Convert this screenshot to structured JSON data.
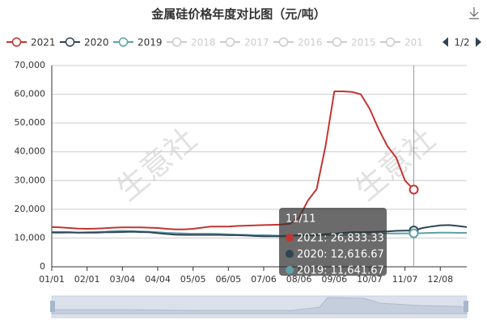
{
  "chart_data": {
    "type": "line",
    "title": "金属硅价格年度对比图（元/吨）",
    "categories": [
      "01/01",
      null,
      null,
      null,
      "02/01",
      null,
      null,
      null,
      "03/04",
      null,
      null,
      null,
      "04/04",
      null,
      null,
      null,
      "05/05",
      null,
      null,
      null,
      "06/05",
      null,
      null,
      null,
      "07/06",
      null,
      null,
      null,
      "08/06",
      null,
      null,
      null,
      "09/06",
      null,
      null,
      null,
      "10/07",
      null,
      null,
      null,
      "11/07",
      null,
      null,
      null,
      "12/08",
      null,
      null,
      null
    ],
    "series": [
      {
        "name": "2021",
        "color": "#c23531",
        "values": [
          13800,
          13700,
          13500,
          13300,
          13200,
          13300,
          13400,
          13600,
          13700,
          13700,
          13700,
          13600,
          13500,
          13200,
          13000,
          13000,
          13200,
          13600,
          14000,
          14000,
          14000,
          14200,
          14300,
          14400,
          14500,
          14600,
          14700,
          15000,
          17000,
          23000,
          27000,
          42000,
          61000,
          61000,
          60800,
          60000,
          55000,
          48000,
          42000,
          38000,
          30000,
          26833.33,
          null,
          null,
          null,
          null,
          null,
          null
        ]
      },
      {
        "name": "2020",
        "color": "#2f4554",
        "values": [
          12000,
          12000,
          12000,
          11900,
          11900,
          11900,
          12000,
          12000,
          12100,
          12200,
          12100,
          12000,
          11700,
          11400,
          11200,
          11100,
          11100,
          11100,
          11100,
          11100,
          11000,
          11000,
          10900,
          10700,
          10600,
          10600,
          10600,
          10700,
          11000,
          11000,
          11100,
          11300,
          11500,
          11800,
          12000,
          12000,
          12100,
          12200,
          12300,
          12500,
          12600,
          12616.67,
          13500,
          14000,
          14400,
          14500,
          14200,
          13800
        ]
      },
      {
        "name": "2019",
        "color": "#61a0a8",
        "values": [
          11800,
          11800,
          11900,
          11900,
          12000,
          12100,
          12200,
          12400,
          12500,
          12400,
          12300,
          12200,
          12000,
          11800,
          11700,
          11600,
          11500,
          11500,
          11500,
          11400,
          11300,
          11200,
          11100,
          11000,
          11000,
          10900,
          10800,
          10800,
          10800,
          10800,
          10900,
          10900,
          11000,
          11100,
          11200,
          11300,
          11400,
          11500,
          11600,
          11600,
          11600,
          11641.67,
          11700,
          11800,
          11900,
          11900,
          11800,
          11800
        ]
      }
    ],
    "inactive_legend": [
      "2018",
      "2017",
      "2016",
      "2015",
      "201"
    ],
    "inactive_color": "#ccc",
    "legend_page": "1/2",
    "ylim": [
      0,
      70000
    ],
    "yticks": [
      0,
      {
        "value": 10000,
        "label": "10,000"
      },
      {
        "value": 20000,
        "label": "20,000"
      },
      {
        "value": 30000,
        "label": "30,000"
      },
      {
        "value": 40000,
        "label": "40,000"
      },
      {
        "value": 50000,
        "label": "50,000"
      },
      {
        "value": 60000,
        "label": "60,000"
      },
      {
        "value": 70000,
        "label": "70,000"
      }
    ],
    "grid": true,
    "tooltip": {
      "title": "11/11",
      "index": 41,
      "lines": [
        "2021: 26,833.33",
        "2020: 12,616.67",
        "2019: 11,641.67"
      ]
    },
    "watermark": [
      "生意社",
      "生意社"
    ]
  }
}
